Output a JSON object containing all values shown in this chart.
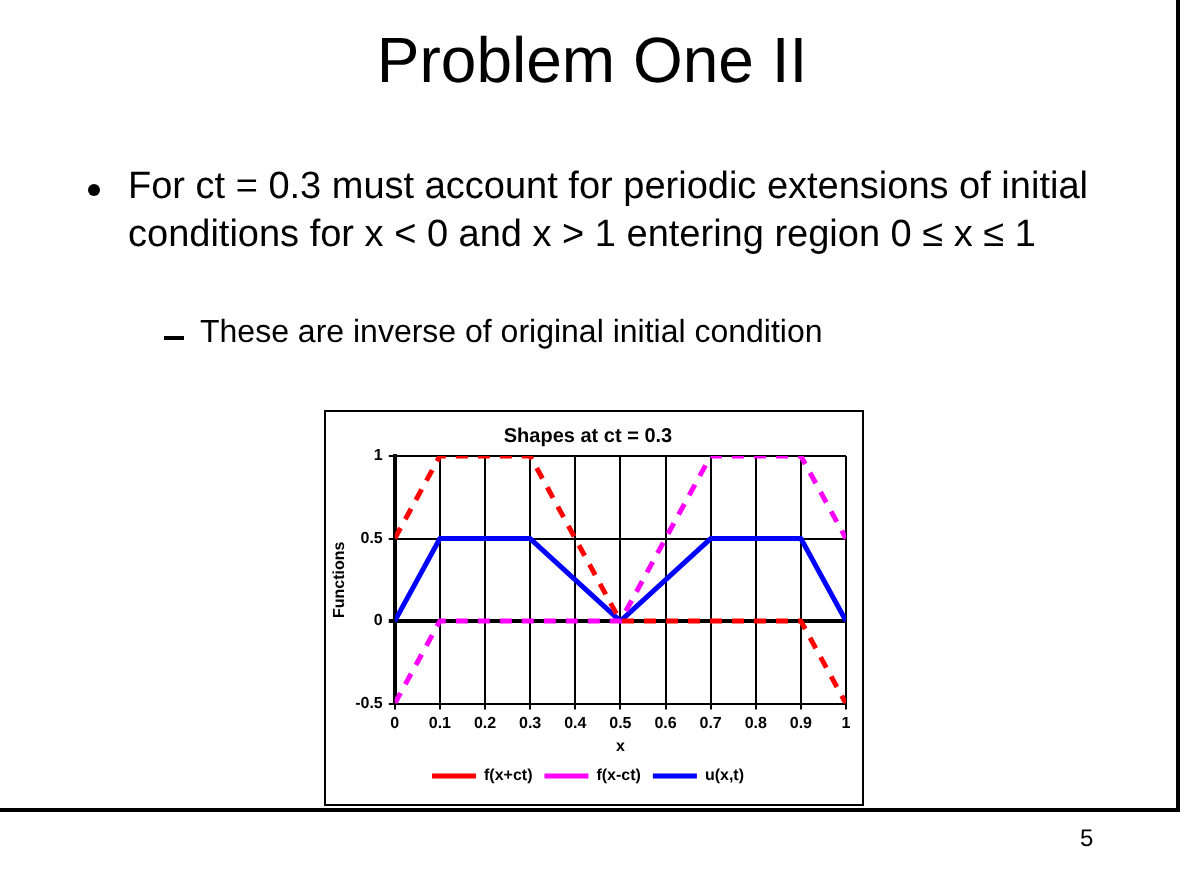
{
  "chart_data": {
    "type": "line",
    "title": "Shapes at ct = 0.3",
    "xlabel": "x",
    "ylabel": "Functions",
    "annotations": [
      "Problem One II",
      "For ct = 0.3 must account for periodic extensions of initial conditions for x < 0 and x > 1 entering region 0 ≤ x ≤ 1",
      "These are inverse of original initial condition",
      "5"
    ],
    "x": [
      0,
      0.1,
      0.3,
      0.5,
      0.7,
      0.9,
      1
    ],
    "series": [
      {
        "name": "f(x+ct)",
        "color": "#ff0000",
        "line_style": "dashed",
        "values": [
          0.5,
          1,
          1,
          0,
          0,
          0,
          -0.5
        ]
      },
      {
        "name": "f(x-ct)",
        "color": "#ff00ff",
        "line_style": "dashed",
        "values": [
          -0.5,
          0,
          0,
          0,
          1,
          1,
          0.5
        ]
      },
      {
        "name": "u(x,t)",
        "color": "#0000ff",
        "line_style": "solid",
        "values": [
          0,
          0.5,
          0.5,
          0,
          0.5,
          0.5,
          0
        ]
      }
    ],
    "xlim": [
      0,
      1
    ],
    "xticks": [
      0,
      0.1,
      0.2,
      0.3,
      0.4,
      0.5,
      0.6,
      0.7,
      0.8,
      0.9,
      1
    ],
    "ylim": [
      -0.5,
      1
    ],
    "yticks": [
      -0.5,
      0,
      0.5,
      1
    ],
    "grid": true,
    "legend": "bottom",
    "marker": "none"
  }
}
